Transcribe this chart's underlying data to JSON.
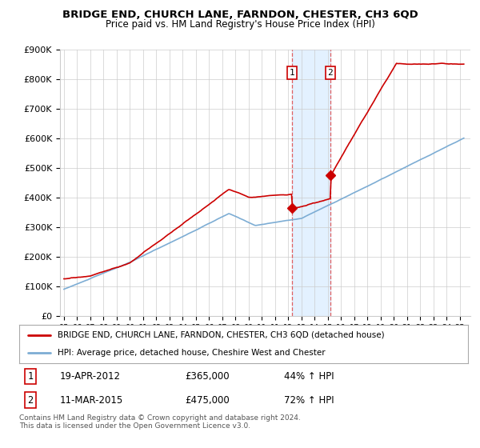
{
  "title": "BRIDGE END, CHURCH LANE, FARNDON, CHESTER, CH3 6QD",
  "subtitle": "Price paid vs. HM Land Registry's House Price Index (HPI)",
  "ylabel_values": [
    "£0",
    "£100K",
    "£200K",
    "£300K",
    "£400K",
    "£500K",
    "£600K",
    "£700K",
    "£800K",
    "£900K"
  ],
  "ylim": [
    0,
    900000
  ],
  "yticks": [
    0,
    100000,
    200000,
    300000,
    400000,
    500000,
    600000,
    700000,
    800000,
    900000
  ],
  "sale1": {
    "date_num": 2012.3,
    "price": 365000,
    "label": "1",
    "date_str": "19-APR-2012",
    "pct": "44% ↑ HPI"
  },
  "sale2": {
    "date_num": 2015.19,
    "price": 475000,
    "label": "2",
    "date_str": "11-MAR-2015",
    "pct": "72% ↑ HPI"
  },
  "property_color": "#cc0000",
  "hpi_color": "#7dadd4",
  "legend_property": "BRIDGE END, CHURCH LANE, FARNDON, CHESTER, CH3 6QD (detached house)",
  "legend_hpi": "HPI: Average price, detached house, Cheshire West and Chester",
  "footnote": "Contains HM Land Registry data © Crown copyright and database right 2024.\nThis data is licensed under the Open Government Licence v3.0.",
  "background_color": "#ffffff",
  "plot_bg": "#ffffff",
  "shade_color": "#ddeeff"
}
